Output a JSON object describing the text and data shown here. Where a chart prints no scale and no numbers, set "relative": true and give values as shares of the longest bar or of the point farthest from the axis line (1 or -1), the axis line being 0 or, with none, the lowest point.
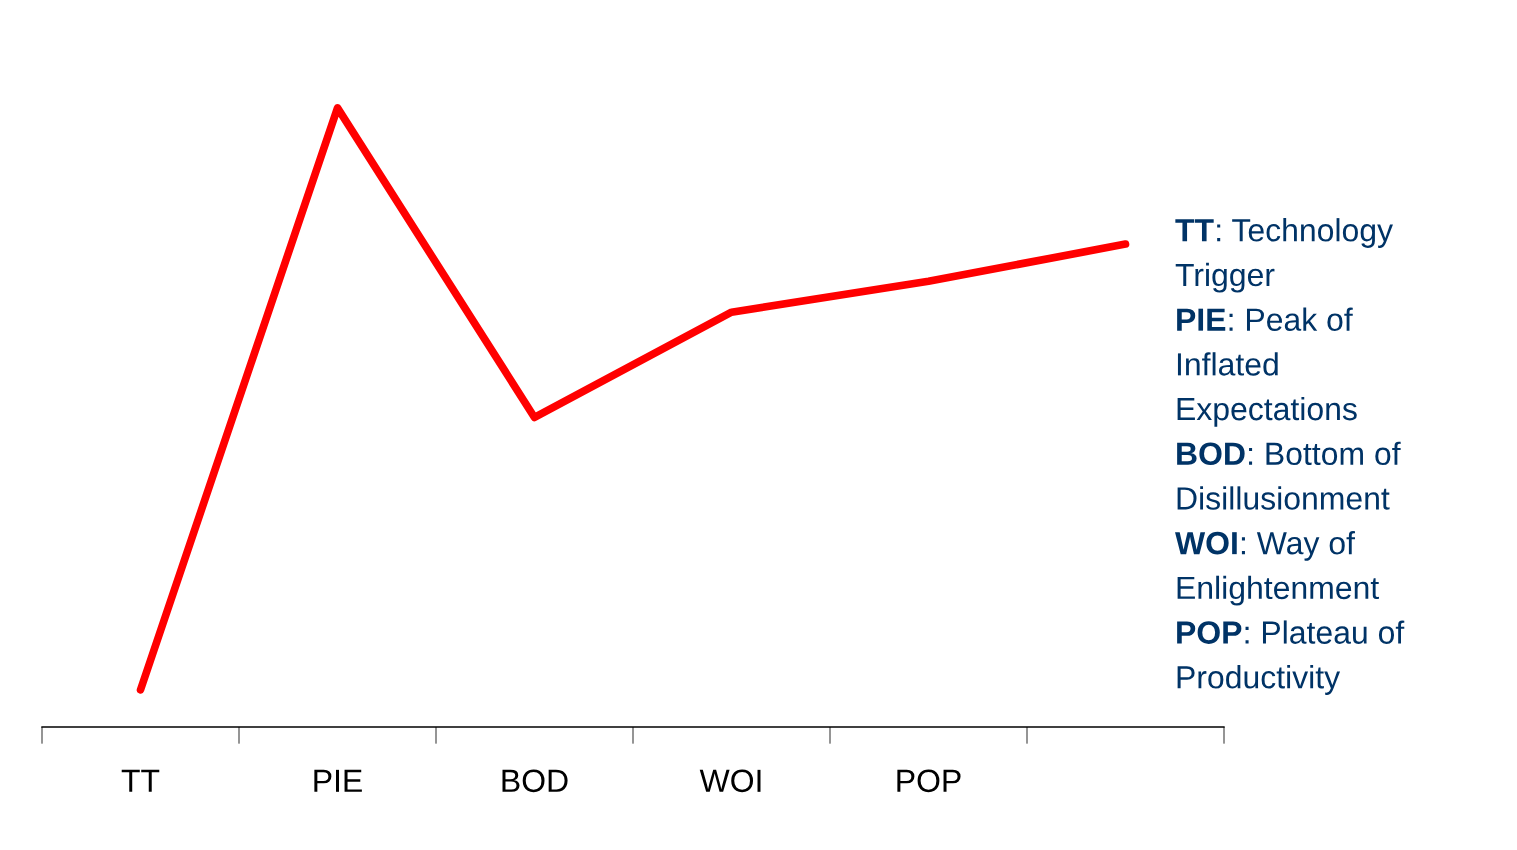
{
  "chart_data": {
    "type": "line",
    "relative": true,
    "categories": [
      "TT",
      "PIE",
      "BOD",
      "WOI",
      "POP",
      null
    ],
    "series": [
      {
        "color": "#ff0000",
        "values": [
          0.06,
          1,
          0.5,
          0.67,
          0.72,
          0.78
        ]
      }
    ],
    "grid": false,
    "marker": "none",
    "line_style": "solid",
    "annotations": [
      "TT: Technology Trigger",
      "PIE: Peak of Inflated Expectations",
      "BOD: Bottom of Disillusionment",
      "WOI: Way of Enlightenment",
      "POP: Plateau of Productivity"
    ]
  }
}
